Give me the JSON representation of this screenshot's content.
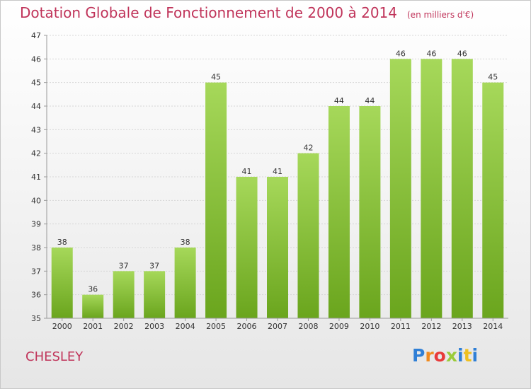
{
  "title": "Dotation Globale de Fonctionnement de 2000 à 2014",
  "unit": "(en milliers d'€)",
  "commune": "CHESLEY",
  "logo": {
    "text": "Proxiti",
    "colors": [
      "#2f7fd6",
      "#f08a1f",
      "#e83a3a",
      "#9acb3a",
      "#2f7fd6",
      "#f0c020",
      "#2f7fd6"
    ]
  },
  "colors": {
    "title": "#c0345a",
    "bar_top": "#a6d85a",
    "bar_bottom": "#6aa51d"
  },
  "chart_data": {
    "type": "bar",
    "categories": [
      "2000",
      "2001",
      "2002",
      "2003",
      "2004",
      "2005",
      "2006",
      "2007",
      "2008",
      "2009",
      "2010",
      "2011",
      "2012",
      "2013",
      "2014"
    ],
    "values": [
      38,
      36,
      37,
      37,
      38,
      45,
      41,
      41,
      42,
      44,
      44,
      46,
      46,
      46,
      45
    ],
    "ylim": [
      35,
      47
    ],
    "yticks": [
      35,
      36,
      37,
      38,
      39,
      40,
      41,
      42,
      43,
      44,
      45,
      46,
      47
    ],
    "xlabel": "",
    "ylabel": "",
    "grid": true
  }
}
